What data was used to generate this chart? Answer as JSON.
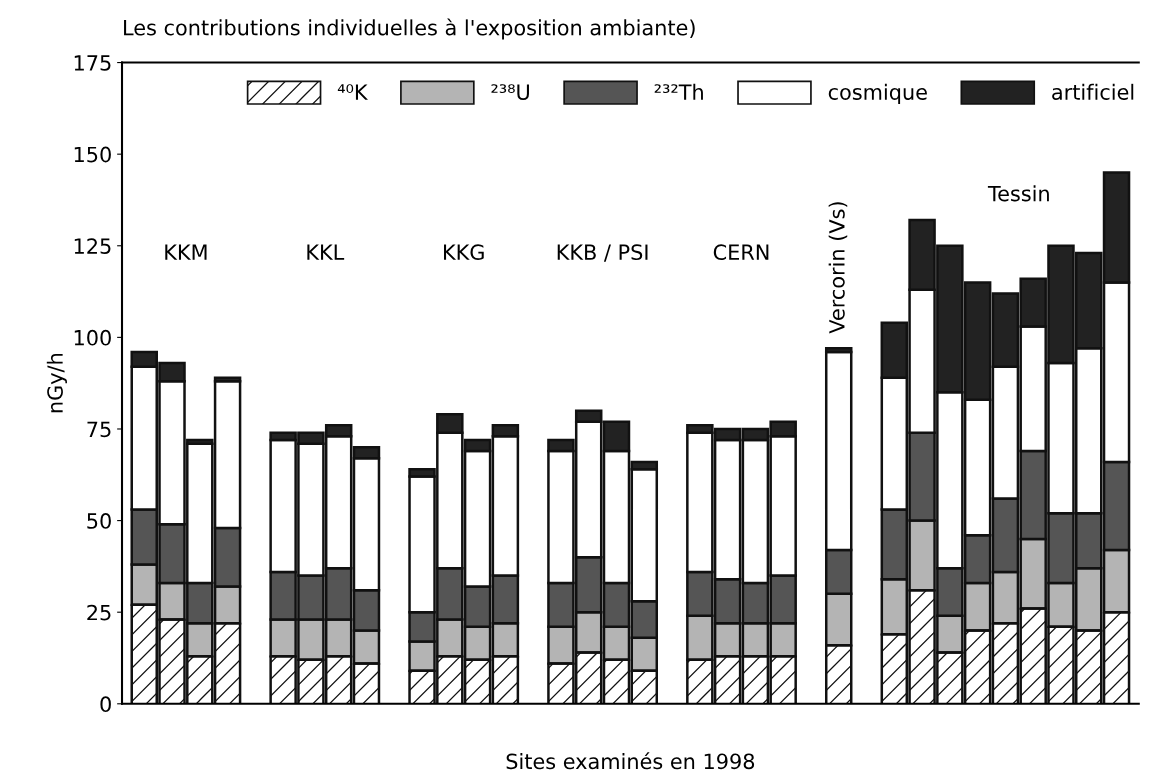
{
  "chart_data": {
    "type": "bar",
    "stacked": true,
    "title": "Les contributions individuelles à l'exposition ambiante)",
    "xlabel": "Sites examinés en 1998",
    "ylabel": "nGy/h",
    "categories": [
      null,
      null,
      null,
      null,
      null,
      null,
      null,
      null,
      null,
      null,
      null,
      null,
      null,
      null,
      null,
      null,
      null,
      null,
      null,
      null,
      null,
      null,
      null,
      null,
      null,
      null,
      null,
      null,
      null,
      null,
      null,
      null,
      null,
      null,
      null,
      null
    ],
    "series": [
      {
        "name": "⁴⁰K",
        "color": "#ffffff",
        "values": [
          27,
          23,
          13,
          22,
          null,
          13,
          12,
          13,
          11,
          null,
          9,
          13,
          12,
          13,
          null,
          11,
          14,
          12,
          9,
          null,
          12,
          13,
          13,
          13,
          null,
          16,
          null,
          19,
          31,
          14,
          20,
          22,
          26,
          21,
          20,
          25
        ]
      },
      {
        "name": "²³⁸U",
        "color": "#b4b4b4",
        "values": [
          11,
          10,
          9,
          10,
          null,
          10,
          11,
          10,
          9,
          null,
          8,
          10,
          9,
          9,
          null,
          10,
          11,
          9,
          9,
          null,
          12,
          9,
          9,
          9,
          null,
          14,
          null,
          15,
          19,
          10,
          13,
          14,
          19,
          12,
          17,
          17
        ]
      },
      {
        "name": "²³²Th",
        "color": "#555555",
        "values": [
          15,
          16,
          11,
          16,
          null,
          13,
          12,
          14,
          11,
          null,
          8,
          14,
          11,
          13,
          null,
          12,
          15,
          12,
          10,
          null,
          12,
          12,
          11,
          13,
          null,
          12,
          null,
          19,
          24,
          13,
          13,
          20,
          24,
          19,
          15,
          24
        ]
      },
      {
        "name": "cosmique",
        "color": "#ffffff",
        "values": [
          39,
          39,
          38,
          40,
          null,
          36,
          36,
          36,
          36,
          null,
          37,
          37,
          37,
          38,
          null,
          36,
          37,
          36,
          36,
          null,
          38,
          38,
          39,
          38,
          null,
          54,
          null,
          36,
          39,
          48,
          37,
          36,
          34,
          41,
          45,
          49
        ]
      },
      {
        "name": "artificiel",
        "color": "#222222",
        "values": [
          4,
          5,
          1,
          1,
          null,
          2,
          3,
          3,
          3,
          null,
          2,
          5,
          3,
          3,
          null,
          3,
          3,
          8,
          2,
          null,
          2,
          3,
          3,
          4,
          null,
          1,
          null,
          15,
          19,
          40,
          32,
          20,
          13,
          32,
          26,
          30
        ]
      }
    ],
    "annotations": [
      "KKM",
      "KKL",
      "KKG",
      "KKB / PSI",
      "CERN",
      "Vercorin (Vs)",
      "Tessin"
    ],
    "ylim": [
      0,
      175
    ],
    "yticks": [
      0,
      25,
      50,
      75,
      100,
      125,
      150,
      175
    ],
    "legend": "top",
    "grid": false
  }
}
